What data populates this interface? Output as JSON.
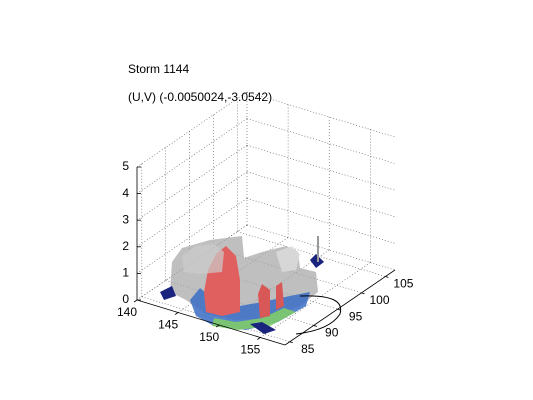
{
  "chart_data": {
    "type": "isosurface3d",
    "title": "Storm 1144",
    "subtitle": "(U,V) (-0.0050024,-3.0542)",
    "xlim": [
      140,
      158
    ],
    "ylim": [
      84,
      107
    ],
    "zlim": [
      0,
      5
    ],
    "xticks": [
      140,
      145,
      150,
      155
    ],
    "yticks": [
      85,
      90,
      95,
      100,
      105
    ],
    "zticks": [
      0,
      1,
      2,
      3,
      4,
      5
    ],
    "grid": true
  }
}
